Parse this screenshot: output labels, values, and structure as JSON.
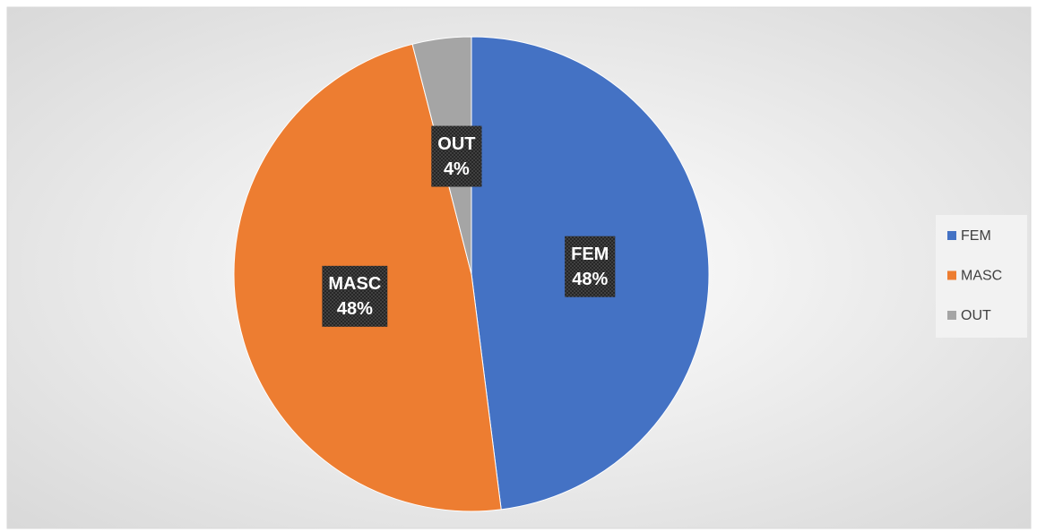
{
  "chart_data": {
    "type": "pie",
    "categories": [
      "FEM",
      "MASC",
      "OUT"
    ],
    "values": [
      48,
      48,
      4
    ],
    "value_labels": [
      "48%",
      "48%",
      "4%"
    ],
    "colors": [
      "#4472c4",
      "#ed7d31",
      "#a5a5a5"
    ],
    "legend": "right"
  }
}
